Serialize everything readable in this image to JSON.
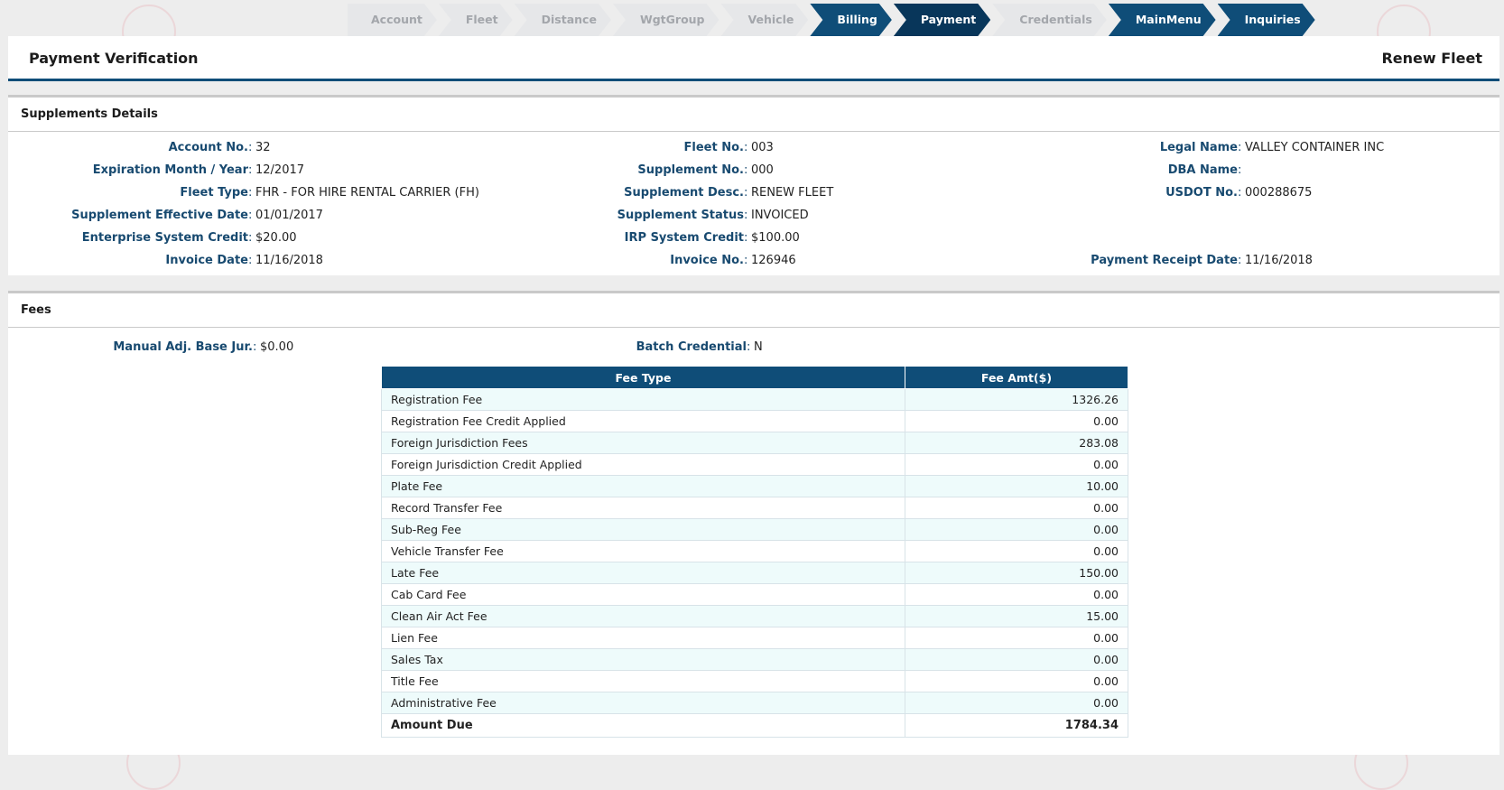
{
  "wizard": {
    "steps": [
      {
        "label": "Account",
        "state": "inactive"
      },
      {
        "label": "Fleet",
        "state": "inactive"
      },
      {
        "label": "Distance",
        "state": "inactive"
      },
      {
        "label": "WgtGroup",
        "state": "inactive"
      },
      {
        "label": "Vehicle",
        "state": "inactive"
      },
      {
        "label": "Billing",
        "state": "active"
      },
      {
        "label": "Payment",
        "state": "current"
      },
      {
        "label": "Credentials",
        "state": "inactive"
      },
      {
        "label": "MainMenu",
        "state": "active"
      },
      {
        "label": "Inquiries",
        "state": "active"
      }
    ]
  },
  "header": {
    "title": "Payment Verification",
    "right_title": "Renew Fleet"
  },
  "supplements": {
    "title": "Supplements Details",
    "account_no": {
      "label": "Account No.",
      "value": "32"
    },
    "expiration": {
      "label": "Expiration Month / Year",
      "value": "12/2017"
    },
    "fleet_type": {
      "label": "Fleet Type",
      "value": "FHR - FOR HIRE RENTAL CARRIER (FH)"
    },
    "supp_eff_date": {
      "label": "Supplement Effective Date",
      "value": "01/01/2017"
    },
    "enterprise_credit": {
      "label": "Enterprise System Credit",
      "value": "$20.00"
    },
    "invoice_date": {
      "label": "Invoice Date",
      "value": "11/16/2018"
    },
    "fleet_no": {
      "label": "Fleet No.",
      "value": "003"
    },
    "supplement_no": {
      "label": "Supplement No.",
      "value": "000"
    },
    "supplement_desc": {
      "label": "Supplement Desc.",
      "value": "RENEW FLEET"
    },
    "supplement_status": {
      "label": "Supplement Status",
      "value": "INVOICED"
    },
    "irp_credit": {
      "label": "IRP System Credit",
      "value": "$100.00"
    },
    "invoice_no": {
      "label": "Invoice No.",
      "value": "126946"
    },
    "legal_name": {
      "label": "Legal Name",
      "value": "VALLEY CONTAINER INC"
    },
    "dba_name": {
      "label": "DBA Name",
      "value": ""
    },
    "usdot_no": {
      "label": "USDOT No.",
      "value": "000288675"
    },
    "payment_receipt_date": {
      "label": "Payment Receipt Date",
      "value": "11/16/2018"
    }
  },
  "fees": {
    "title": "Fees",
    "manual_adj": {
      "label": "Manual Adj. Base Jur.",
      "value": "$0.00"
    },
    "batch_credential": {
      "label": "Batch Credential",
      "value": "N"
    },
    "table": {
      "headers": [
        "Fee Type",
        "Fee Amt($)"
      ],
      "rows": [
        {
          "type": "Registration Fee",
          "amount": "1326.26"
        },
        {
          "type": "Registration Fee Credit Applied",
          "amount": "0.00"
        },
        {
          "type": "Foreign Jurisdiction Fees",
          "amount": "283.08"
        },
        {
          "type": "Foreign Jurisdiction Credit Applied",
          "amount": "0.00"
        },
        {
          "type": "Plate Fee",
          "amount": "10.00"
        },
        {
          "type": "Record Transfer Fee",
          "amount": "0.00"
        },
        {
          "type": "Sub-Reg Fee",
          "amount": "0.00"
        },
        {
          "type": "Vehicle Transfer Fee",
          "amount": "0.00"
        },
        {
          "type": "Late Fee",
          "amount": "150.00"
        },
        {
          "type": "Cab Card Fee",
          "amount": "0.00"
        },
        {
          "type": "Clean Air Act Fee",
          "amount": "15.00"
        },
        {
          "type": "Lien Fee",
          "amount": "0.00"
        },
        {
          "type": "Sales Tax",
          "amount": "0.00"
        },
        {
          "type": "Title Fee",
          "amount": "0.00"
        },
        {
          "type": "Administrative Fee",
          "amount": "0.00"
        }
      ],
      "total": {
        "type": "Amount Due",
        "amount": "1784.34"
      }
    }
  }
}
